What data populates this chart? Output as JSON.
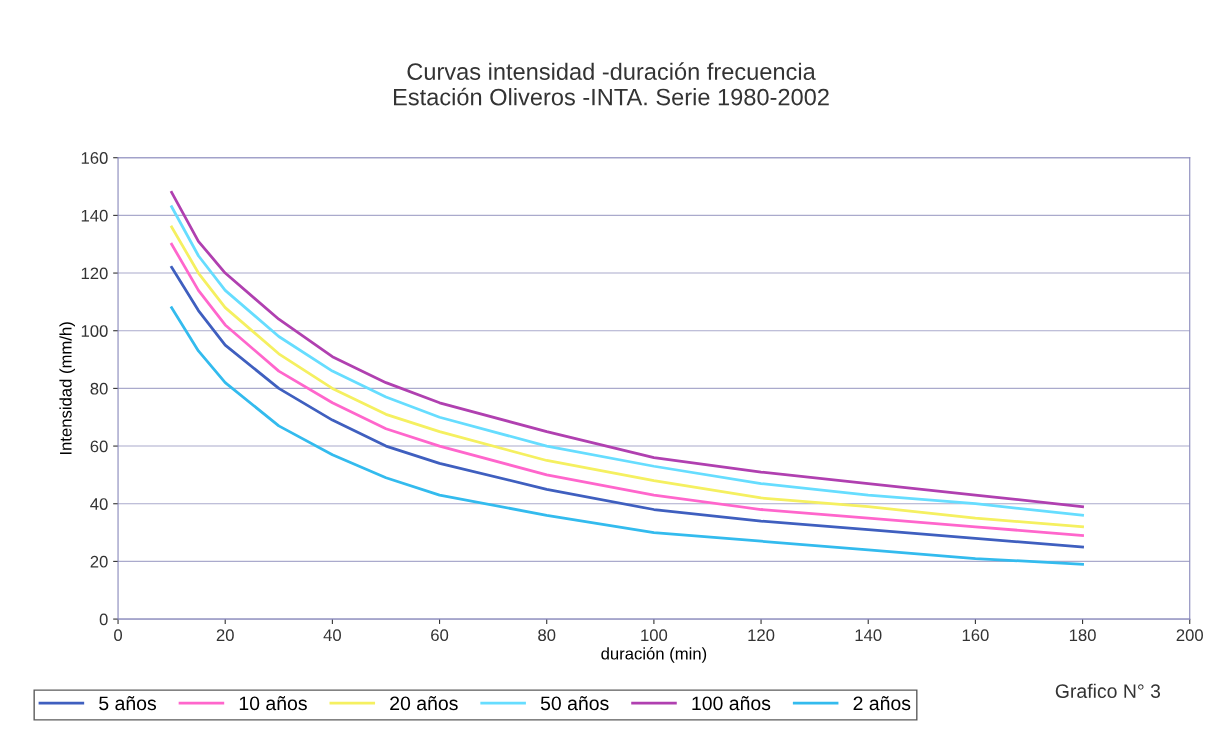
{
  "chart_data": {
    "type": "line",
    "title": "Curvas intensidad -duración frecuencia\nEstación Oliveros -INTA. Serie 1980-2002",
    "xlabel": "duración (min)",
    "ylabel": "Intensidad (mm/h)",
    "annotations": [
      "Grafico N° 3"
    ],
    "x": [
      10,
      15,
      20,
      30,
      40,
      50,
      60,
      80,
      100,
      120,
      140,
      160,
      180
    ],
    "series": [
      {
        "name": "5 años",
        "color": "#3f5fbf",
        "values": [
          122,
          107,
          95,
          80,
          69,
          60,
          54,
          45,
          38,
          34,
          31,
          28,
          25
        ]
      },
      {
        "name": "10 años",
        "color": "#ff66cc",
        "values": [
          130,
          114,
          102,
          86,
          75,
          66,
          60,
          50,
          43,
          38,
          35,
          32,
          29
        ]
      },
      {
        "name": "20 años",
        "color": "#f5f060",
        "values": [
          136,
          120,
          108,
          92,
          80,
          71,
          65,
          55,
          48,
          42,
          39,
          35,
          32
        ]
      },
      {
        "name": "50 años",
        "color": "#66ddff",
        "values": [
          143,
          126,
          114,
          98,
          86,
          77,
          70,
          60,
          53,
          47,
          43,
          40,
          36
        ]
      },
      {
        "name": "100 años",
        "color": "#b040b0",
        "values": [
          148,
          131,
          120,
          104,
          91,
          82,
          75,
          65,
          56,
          51,
          47,
          43,
          39
        ]
      },
      {
        "name": "2 años",
        "color": "#33bbee",
        "values": [
          108,
          93,
          82,
          67,
          57,
          49,
          43,
          36,
          30,
          27,
          24,
          21,
          19
        ]
      }
    ],
    "xlim": [
      0,
      200
    ],
    "xticks": [
      0,
      20,
      40,
      60,
      80,
      100,
      120,
      140,
      160,
      180,
      200
    ],
    "ylim": [
      0,
      160
    ],
    "yticks": [
      0,
      20,
      40,
      60,
      80,
      100,
      120,
      140,
      160
    ],
    "grid": "y",
    "legend": "bottom",
    "marker": "none",
    "line_style": "solid"
  }
}
